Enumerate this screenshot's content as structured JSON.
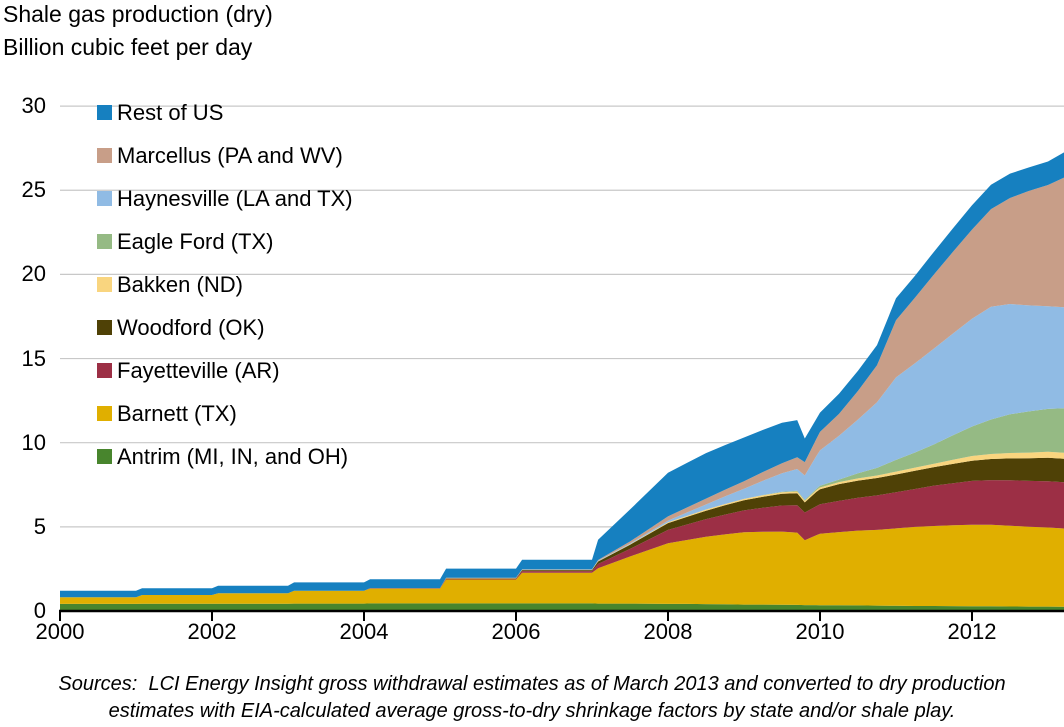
{
  "title": "Shale gas production (dry)",
  "subtitle": "Billion cubic feet per day",
  "source": {
    "line1": "Sources:  LCI Energy Insight gross withdrawal estimates as of March 2013 and converted to dry production",
    "line2": "estimates with EIA-calculated average gross-to-dry shrinkage factors by state and/or shale play."
  },
  "colors": {
    "axis": "#000000",
    "gridline": "#c8c8c8",
    "background": "#ffffff"
  },
  "chart_data": {
    "type": "area",
    "stacked": true,
    "title": "Shale gas production (dry)",
    "ylabel": "Billion cubic feet per day",
    "xlabel": "",
    "grid": "horizontal",
    "legend_position": "top-left-overlay",
    "x_axis": {
      "range": [
        2000,
        2013.21
      ],
      "ticks": [
        2000,
        2002,
        2004,
        2006,
        2008,
        2010,
        2012
      ]
    },
    "y_axis": {
      "range": [
        0,
        30
      ],
      "ticks": [
        0,
        5,
        10,
        15,
        20,
        25,
        30
      ],
      "gridlines": [
        5,
        10,
        15,
        20,
        25,
        30
      ]
    },
    "x_years": [
      2000.0,
      2001.0,
      2001.08,
      2002.0,
      2002.08,
      2003.0,
      2003.08,
      2004.0,
      2004.08,
      2005.0,
      2005.08,
      2006.0,
      2006.08,
      2007.0,
      2007.08,
      2007.5,
      2008.0,
      2008.25,
      2008.5,
      2008.75,
      2009.0,
      2009.25,
      2009.5,
      2009.7,
      2009.8,
      2009.95,
      2010.0,
      2010.25,
      2010.5,
      2010.75,
      2011.0,
      2011.25,
      2011.5,
      2011.75,
      2012.0,
      2012.25,
      2012.5,
      2012.75,
      2013.0,
      2013.21
    ],
    "series": [
      {
        "key": "antrim",
        "label": "Antrim (MI, IN, and OH)",
        "color": "#48852d",
        "values": [
          0.42,
          0.42,
          0.43,
          0.43,
          0.43,
          0.43,
          0.44,
          0.44,
          0.45,
          0.45,
          0.45,
          0.45,
          0.45,
          0.45,
          0.44,
          0.44,
          0.42,
          0.42,
          0.41,
          0.4,
          0.38,
          0.38,
          0.37,
          0.36,
          0.35,
          0.35,
          0.34,
          0.34,
          0.33,
          0.32,
          0.31,
          0.3,
          0.3,
          0.29,
          0.28,
          0.28,
          0.27,
          0.26,
          0.26,
          0.25
        ]
      },
      {
        "key": "barnett",
        "label": "Barnett (TX)",
        "color": "#e0af00",
        "values": [
          0.4,
          0.4,
          0.52,
          0.52,
          0.62,
          0.62,
          0.76,
          0.76,
          0.88,
          0.88,
          1.42,
          1.42,
          1.82,
          1.82,
          2.1,
          2.8,
          3.6,
          3.8,
          4.0,
          4.15,
          4.3,
          4.33,
          4.35,
          4.3,
          3.85,
          4.15,
          4.25,
          4.35,
          4.45,
          4.5,
          4.6,
          4.7,
          4.75,
          4.8,
          4.85,
          4.85,
          4.8,
          4.75,
          4.7,
          4.65
        ]
      },
      {
        "key": "fayetteville",
        "label": "Fayetteville (AR)",
        "color": "#9c2f45",
        "values": [
          0,
          0,
          0,
          0,
          0,
          0,
          0,
          0,
          0.02,
          0.02,
          0.05,
          0.05,
          0.1,
          0.1,
          0.25,
          0.45,
          0.8,
          0.92,
          1.05,
          1.18,
          1.3,
          1.43,
          1.55,
          1.62,
          1.65,
          1.72,
          1.75,
          1.85,
          1.95,
          2.05,
          2.15,
          2.25,
          2.4,
          2.5,
          2.6,
          2.65,
          2.7,
          2.72,
          2.75,
          2.75
        ]
      },
      {
        "key": "woodford",
        "label": "Woodford (OK)",
        "color": "#4f4106",
        "values": [
          0,
          0,
          0,
          0,
          0,
          0,
          0,
          0,
          0.01,
          0.01,
          0.03,
          0.03,
          0.06,
          0.06,
          0.15,
          0.25,
          0.4,
          0.45,
          0.5,
          0.55,
          0.6,
          0.65,
          0.7,
          0.72,
          0.6,
          0.85,
          0.9,
          1.0,
          1.02,
          1.03,
          1.05,
          1.08,
          1.1,
          1.15,
          1.2,
          1.25,
          1.3,
          1.35,
          1.4,
          1.4
        ]
      },
      {
        "key": "bakken",
        "label": "Bakken (ND)",
        "color": "#f9d57f",
        "values": [
          0,
          0,
          0,
          0,
          0,
          0,
          0,
          0,
          0,
          0,
          0.01,
          0.01,
          0.01,
          0.01,
          0.02,
          0.03,
          0.05,
          0.06,
          0.07,
          0.08,
          0.08,
          0.09,
          0.09,
          0.1,
          0.1,
          0.1,
          0.1,
          0.12,
          0.13,
          0.15,
          0.17,
          0.19,
          0.2,
          0.25,
          0.28,
          0.3,
          0.32,
          0.33,
          0.35,
          0.35
        ]
      },
      {
        "key": "eagleford",
        "label": "Eagle Ford (TX)",
        "color": "#95ba84",
        "values": [
          0,
          0,
          0,
          0,
          0,
          0,
          0,
          0,
          0,
          0,
          0,
          0,
          0,
          0,
          0,
          0,
          0,
          0,
          0,
          0,
          0,
          0.01,
          0.02,
          0.04,
          0.05,
          0.08,
          0.1,
          0.15,
          0.3,
          0.45,
          0.7,
          0.9,
          1.15,
          1.45,
          1.75,
          2.05,
          2.3,
          2.45,
          2.55,
          2.65
        ]
      },
      {
        "key": "haynesville",
        "label": "Haynesville (LA and TX)",
        "color": "#90bbe4",
        "values": [
          0,
          0,
          0,
          0,
          0,
          0,
          0,
          0,
          0,
          0,
          0,
          0,
          0.01,
          0.01,
          0.02,
          0.04,
          0.1,
          0.2,
          0.3,
          0.45,
          0.6,
          0.85,
          1.1,
          1.3,
          1.45,
          1.95,
          2.1,
          2.6,
          3.2,
          3.9,
          4.9,
          5.3,
          5.7,
          6.05,
          6.4,
          6.7,
          6.55,
          6.3,
          6.1,
          6.0
        ]
      },
      {
        "key": "marcellus",
        "label": "Marcellus (PA and WV)",
        "color": "#c89e88",
        "values": [
          0,
          0,
          0,
          0,
          0,
          0,
          0,
          0,
          0,
          0,
          0.01,
          0.01,
          0.02,
          0.02,
          0.05,
          0.12,
          0.25,
          0.3,
          0.35,
          0.4,
          0.45,
          0.52,
          0.6,
          0.7,
          0.8,
          1.0,
          1.1,
          1.3,
          1.7,
          2.2,
          3.4,
          3.9,
          4.4,
          4.85,
          5.3,
          5.8,
          6.3,
          6.8,
          7.2,
          7.7
        ]
      },
      {
        "key": "restofus",
        "label": "Rest of US",
        "color": "#1680c0",
        "values": [
          0.38,
          0.38,
          0.4,
          0.4,
          0.45,
          0.45,
          0.5,
          0.5,
          0.53,
          0.53,
          0.55,
          0.55,
          0.58,
          0.58,
          1.2,
          1.9,
          2.6,
          2.65,
          2.7,
          2.65,
          2.6,
          2.5,
          2.4,
          2.2,
          1.4,
          1.2,
          1.15,
          1.2,
          1.2,
          1.2,
          1.3,
          1.3,
          1.35,
          1.4,
          1.45,
          1.45,
          1.45,
          1.4,
          1.4,
          1.5
        ]
      }
    ]
  }
}
